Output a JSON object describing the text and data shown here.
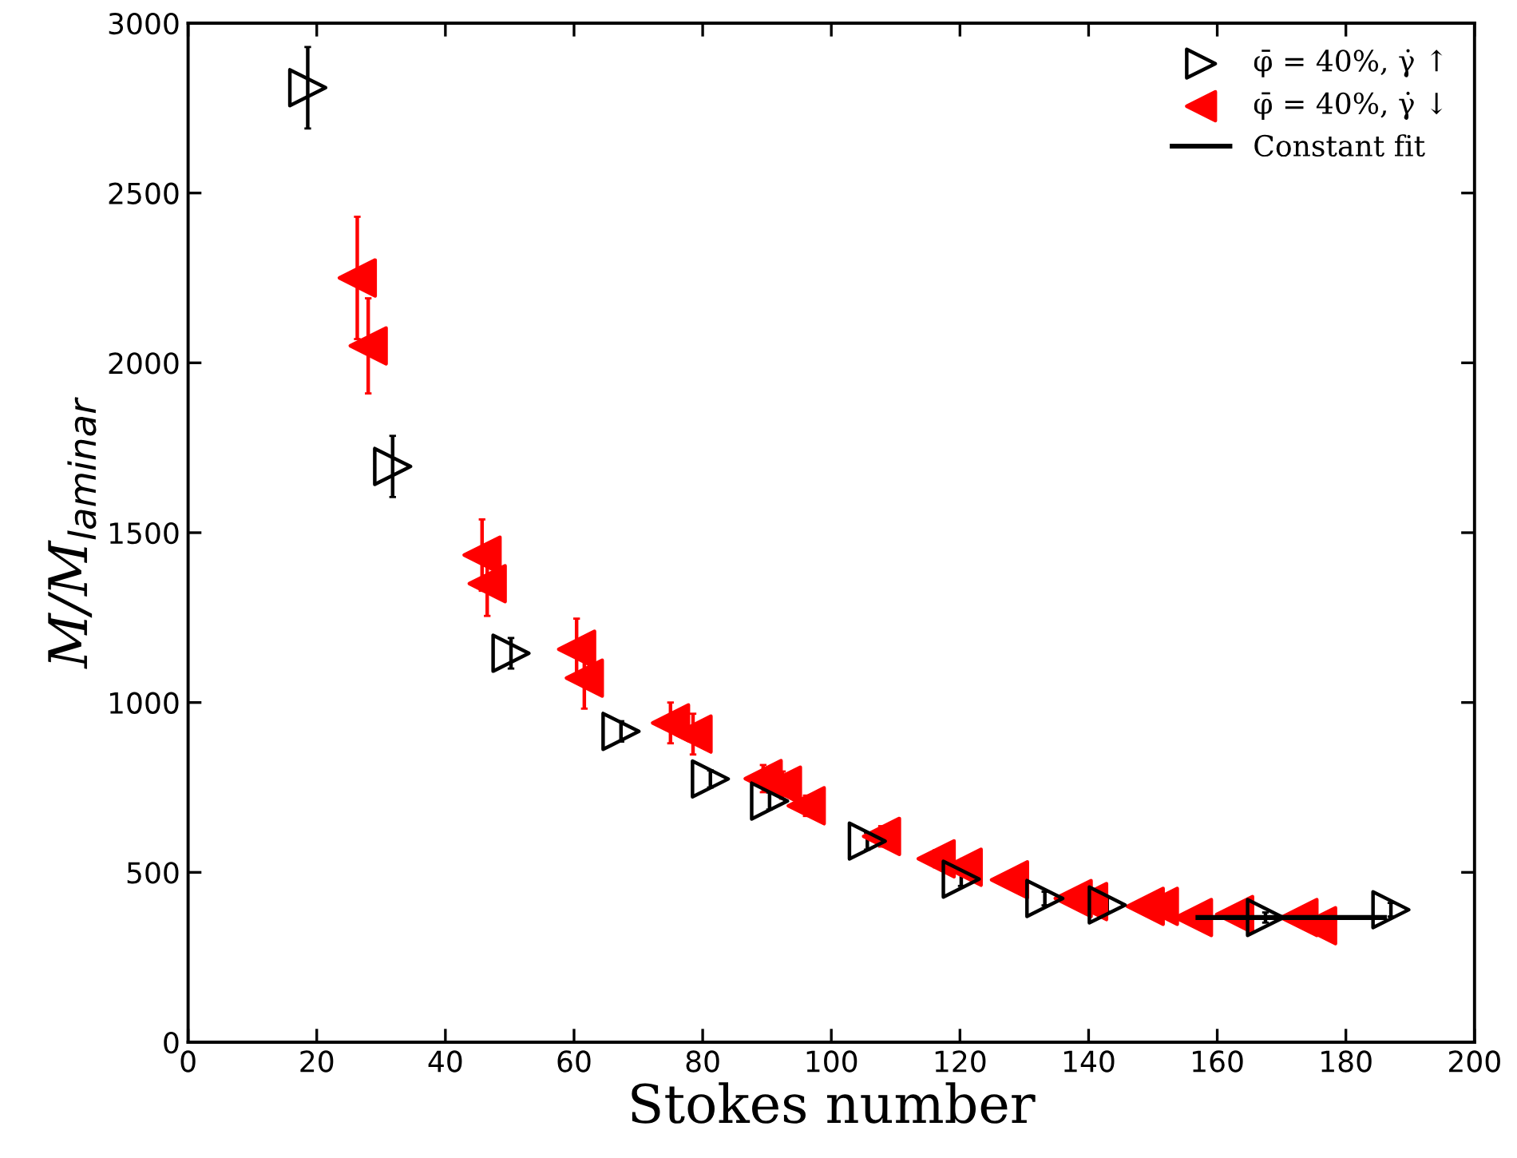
{
  "chart_data": {
    "type": "scatter",
    "xlabel": "Stokes number",
    "ylabel": "M/M$_{laminar}$",
    "xlim": [
      0,
      200
    ],
    "xticks": [
      0,
      20,
      40,
      60,
      80,
      100,
      120,
      140,
      160,
      180,
      200
    ],
    "ylim": [
      0,
      3000
    ],
    "yticks": [
      0,
      500,
      1000,
      1500,
      2000,
      2500,
      3000
    ],
    "grid": false,
    "legend": "top right",
    "marker": "triangle",
    "series": [
      {
        "name": "φ̄ = 40%, γ̇ ↑",
        "color": "#000000",
        "x": [
          18.6,
          31.8,
          50.2,
          67.3,
          81.2,
          90.4,
          105.6,
          120.2,
          133.2,
          142.9,
          167.5,
          187
        ],
        "values": [
          2810,
          1695,
          1145,
          915,
          775,
          710,
          592,
          480,
          423,
          404,
          367,
          390
        ],
        "errors": [
          120,
          90,
          45,
          30,
          25,
          25,
          25,
          20,
          20,
          20,
          15,
          20
        ]
      },
      {
        "name": "φ̄ = 40%, γ̇ ↓",
        "color": "#ff0000",
        "x": [
          26.3,
          28,
          45.7,
          46.5,
          60.4,
          61.6,
          75,
          78.5,
          89.4,
          92.4,
          96.1,
          107.8,
          116.3,
          120.5,
          127.7,
          137.6,
          140,
          148.8,
          151,
          156.3,
          162.7,
          172.7,
          175.6
        ],
        "values": [
          2250,
          2050,
          1434,
          1350,
          1157,
          1072,
          940,
          907,
          776,
          757,
          696,
          606,
          540,
          515,
          478,
          423,
          414,
          400,
          400,
          367,
          376,
          367,
          343
        ],
        "errors": [
          180,
          140,
          105,
          95,
          90,
          90,
          60,
          60,
          40,
          40,
          30,
          30,
          25,
          25,
          20,
          20,
          20,
          15,
          15,
          15,
          15,
          15,
          15
        ]
      },
      {
        "name": "Constant fit",
        "type": "line",
        "color": "#000000",
        "x": [
          157,
          186
        ],
        "values": [
          367,
          367
        ],
        "marker": "none",
        "line_style": "solid"
      }
    ]
  }
}
